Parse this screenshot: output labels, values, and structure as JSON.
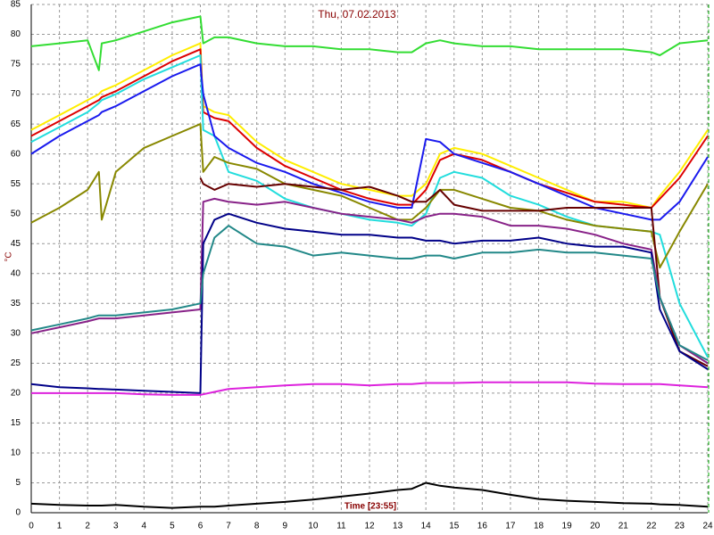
{
  "chart_data": {
    "type": "line",
    "title": "Thu, 07.02.2013",
    "y_label": "°C",
    "x_label": "Time [23:55]",
    "xlim": [
      0,
      24
    ],
    "xticks": [
      0,
      1,
      2,
      3,
      4,
      5,
      6,
      7,
      8,
      9,
      10,
      11,
      12,
      13,
      14,
      15,
      16,
      17,
      18,
      19,
      20,
      21,
      22,
      23,
      24
    ],
    "ylim": [
      0,
      85
    ],
    "yticks": [
      0,
      5,
      10,
      15,
      20,
      25,
      30,
      35,
      40,
      45,
      50,
      55,
      60,
      65,
      70,
      75,
      80,
      85
    ],
    "grid": true,
    "x": [
      0,
      1,
      2,
      2.4,
      2.5,
      3,
      4,
      5,
      6,
      6.1,
      6.5,
      7,
      8,
      9,
      10,
      11,
      12,
      13,
      13.5,
      14,
      14.5,
      15,
      16,
      17,
      18,
      19,
      20,
      21,
      22,
      22.3,
      23,
      24
    ],
    "series": [
      {
        "color": "#33dd33",
        "values": [
          78,
          78.5,
          79,
          74,
          78.5,
          79,
          80.5,
          82,
          83,
          78.5,
          79.5,
          79.5,
          78.5,
          78,
          78,
          77.5,
          77.5,
          77,
          77,
          78.5,
          79,
          78.5,
          78,
          78,
          77.5,
          77.5,
          77.5,
          77.5,
          77,
          76.5,
          78.5,
          79
        ]
      },
      {
        "color": "#ffee00",
        "values": [
          64,
          66.5,
          69,
          70,
          70.5,
          71.5,
          74,
          76.5,
          78.5,
          68,
          67,
          66.5,
          62,
          59,
          57,
          55,
          54,
          53,
          53,
          55,
          60,
          61,
          60,
          58,
          56,
          54,
          52,
          52,
          51,
          53,
          57,
          64
        ]
      },
      {
        "color": "#dd0000",
        "values": [
          63,
          65.5,
          68,
          69,
          69.5,
          70.5,
          73,
          75.5,
          77.5,
          67,
          66,
          65.5,
          61,
          58,
          56,
          54,
          52.5,
          51.5,
          51.5,
          54,
          59,
          60,
          59,
          57,
          55,
          53.5,
          52,
          51.5,
          51,
          52.5,
          56,
          63
        ]
      },
      {
        "color": "#22dddd",
        "values": [
          62,
          64.5,
          67,
          68.5,
          69,
          70,
          72.5,
          74.5,
          76.5,
          64,
          63,
          57,
          55.5,
          52.5,
          51,
          50,
          49,
          48.5,
          48,
          50,
          56,
          57,
          56,
          53,
          51.5,
          49.5,
          48,
          47.5,
          47,
          46.5,
          35,
          26
        ]
      },
      {
        "color": "#1a1aee",
        "values": [
          60,
          63,
          65.5,
          66.5,
          67,
          68,
          70.5,
          73,
          75,
          70,
          63,
          61,
          58.5,
          57,
          55,
          53.5,
          52,
          51,
          51,
          62.5,
          62,
          60,
          58.5,
          57,
          55,
          53,
          51,
          50,
          49,
          49,
          52,
          59.5
        ]
      },
      {
        "color": "#888800",
        "values": [
          48.5,
          51,
          54,
          57,
          49,
          57,
          61,
          63,
          65,
          57,
          59.5,
          58.5,
          57.5,
          55,
          54,
          53,
          51,
          49,
          49,
          51,
          54,
          54,
          52.5,
          51,
          50.5,
          49,
          48,
          47.5,
          47,
          41,
          47,
          55
        ]
      },
      {
        "color": "#660000",
        "values": [
          null,
          null,
          null,
          null,
          null,
          null,
          null,
          null,
          56,
          55,
          54,
          55,
          54.5,
          55,
          54.5,
          54,
          54.5,
          53,
          52,
          52,
          54,
          51.5,
          50.5,
          50.5,
          50.5,
          51,
          51,
          51,
          51,
          36,
          27,
          24.5
        ]
      },
      {
        "color": "#882288",
        "values": [
          30,
          31,
          32,
          32.5,
          32.5,
          32.5,
          33,
          33.5,
          34,
          52,
          52.5,
          52,
          51.5,
          52,
          51,
          50,
          49.5,
          49,
          48.5,
          49.5,
          50,
          50,
          49.5,
          48,
          48,
          47.5,
          46.5,
          45,
          44,
          36,
          28,
          25
        ]
      },
      {
        "color": "#000088",
        "values": [
          21.5,
          21,
          20.8,
          20.7,
          20.7,
          20.6,
          20.4,
          20.2,
          20,
          45,
          49,
          50,
          48.5,
          47.5,
          47,
          46.5,
          46.5,
          46,
          46,
          45.5,
          45.5,
          45,
          45.5,
          45.5,
          46,
          45,
          44.5,
          44.5,
          43.5,
          34,
          27,
          24
        ]
      },
      {
        "color": "#228888",
        "values": [
          30.5,
          31.5,
          32.5,
          33,
          33,
          33,
          33.5,
          34,
          35,
          40,
          46,
          48,
          45,
          44.5,
          43,
          43.5,
          43,
          42.5,
          42.5,
          43,
          43,
          42.5,
          43.5,
          43.5,
          44,
          43.5,
          43.5,
          43,
          42.5,
          36,
          28,
          25.5
        ]
      },
      {
        "color": "#dd22dd",
        "values": [
          20,
          20,
          20,
          20,
          20,
          20,
          19.8,
          19.7,
          19.7,
          19.8,
          20.2,
          20.7,
          21,
          21.3,
          21.5,
          21.5,
          21.3,
          21.5,
          21.5,
          21.7,
          21.7,
          21.7,
          21.8,
          21.8,
          21.8,
          21.8,
          21.6,
          21.5,
          21.5,
          21.5,
          21.3,
          21
        ]
      },
      {
        "color": "#000000",
        "values": [
          1.5,
          1.3,
          1.2,
          1.2,
          1.2,
          1.3,
          1,
          0.8,
          1,
          1,
          1,
          1.2,
          1.5,
          1.8,
          2.2,
          2.7,
          3.2,
          3.8,
          4,
          5,
          4.5,
          4.2,
          3.8,
          3,
          2.3,
          2,
          1.8,
          1.6,
          1.5,
          1.4,
          1.3,
          1
        ]
      }
    ]
  }
}
